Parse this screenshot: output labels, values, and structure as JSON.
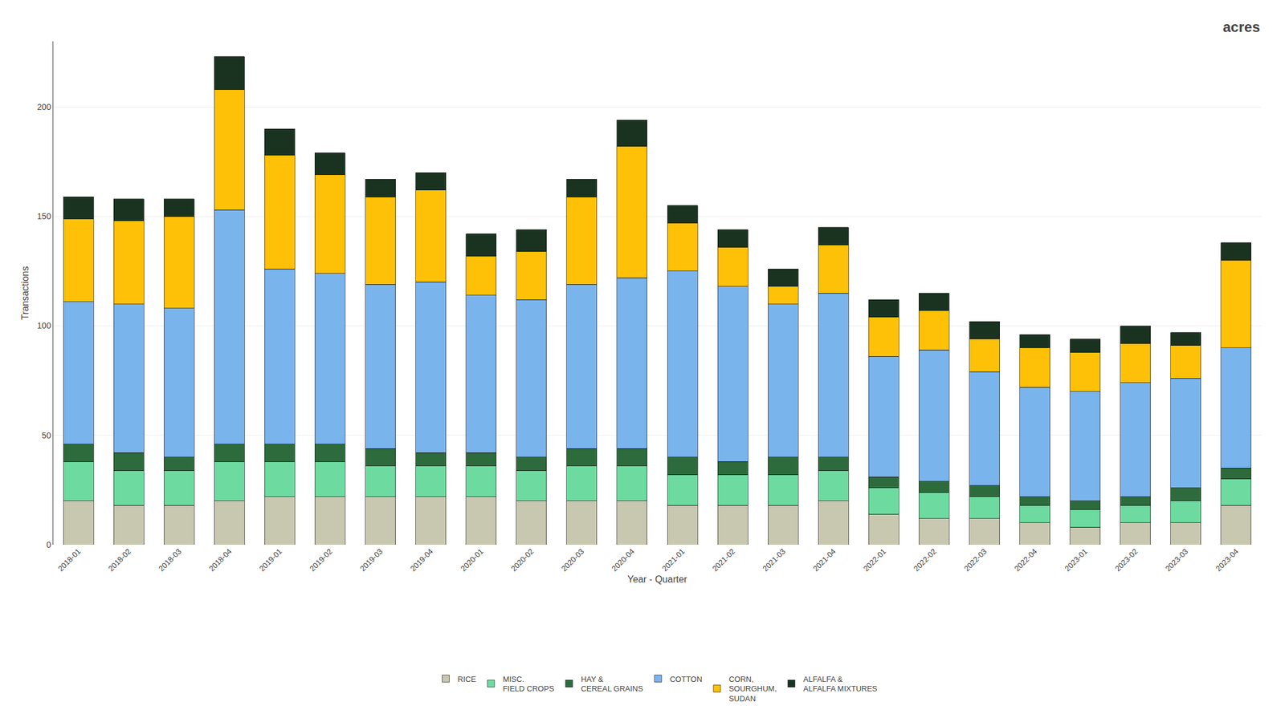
{
  "chart_data": {
    "type": "bar",
    "stacked": true,
    "xlabel": "Year - Quarter",
    "ylabel": "Transactions",
    "categories": [
      "2018-01",
      "2018-02",
      "2018-03",
      "2018-04",
      "2019-01",
      "2019-02",
      "2019-03",
      "2019-04",
      "2020-01",
      "2020-02",
      "2020-03",
      "2020-04",
      "2021-01",
      "2021-02",
      "2021-03",
      "2021-04",
      "2022-01",
      "2022-02",
      "2022-03",
      "2022-04",
      "2023-01",
      "2023-02",
      "2023-03",
      "2023-04"
    ],
    "series": [
      {
        "name": "RICE",
        "color": "#c8c8b0",
        "values": [
          20,
          18,
          18,
          20,
          22,
          22,
          22,
          22,
          22,
          20,
          20,
          20,
          18,
          18,
          18,
          20,
          14,
          12,
          12,
          10,
          8,
          10,
          10,
          18
        ]
      },
      {
        "name": "MISC.\nFIELD CROPS",
        "color": "#6ddba0",
        "values": [
          18,
          16,
          16,
          18,
          16,
          16,
          14,
          14,
          14,
          14,
          16,
          16,
          14,
          14,
          14,
          14,
          12,
          12,
          10,
          8,
          8,
          8,
          10,
          12
        ]
      },
      {
        "name": "HAY &\nCEREAL GRAINS",
        "color": "#2d6b3c",
        "values": [
          8,
          8,
          6,
          8,
          8,
          8,
          8,
          6,
          6,
          6,
          8,
          8,
          8,
          6,
          8,
          6,
          5,
          5,
          5,
          4,
          4,
          4,
          6,
          5
        ]
      },
      {
        "name": "COTTON",
        "color": "#7ab4ec",
        "values": [
          65,
          68,
          68,
          107,
          80,
          78,
          75,
          78,
          72,
          72,
          75,
          78,
          85,
          80,
          70,
          75,
          55,
          60,
          52,
          50,
          50,
          52,
          50,
          55
        ]
      },
      {
        "name": "CORN,\nSOURGHUM,\nSUDAN",
        "color": "#ffc107",
        "values": [
          38,
          38,
          42,
          55,
          52,
          45,
          40,
          42,
          18,
          22,
          40,
          60,
          22,
          18,
          8,
          22,
          18,
          18,
          15,
          18,
          18,
          18,
          15,
          40
        ]
      },
      {
        "name": "ALFALFA &\nALFALFA MIXTURES",
        "color": "#1a3320",
        "values": [
          10,
          10,
          8,
          15,
          12,
          10,
          8,
          8,
          10,
          10,
          8,
          12,
          8,
          8,
          8,
          8,
          8,
          8,
          8,
          6,
          6,
          8,
          6,
          8
        ]
      }
    ],
    "ylim": [
      0,
      230
    ],
    "yticks": [
      0,
      50,
      100,
      150,
      200
    ],
    "grid": true,
    "legend": "bottom",
    "annotations": [
      "acres"
    ]
  }
}
